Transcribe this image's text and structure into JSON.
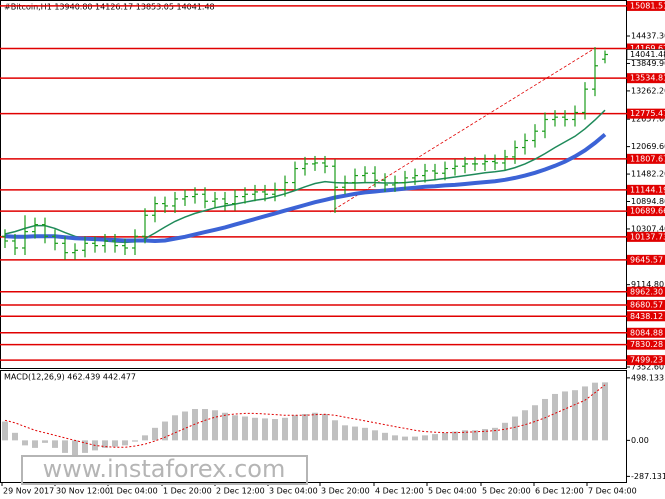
{
  "header": "#Bitcoin,H1 13940.80 14126.17 13853.05 14041.48",
  "watermark": "www.instaforex.com",
  "chart_data": [
    {
      "type": "ohlc",
      "color": "#1a9c1a",
      "xlim": [
        -0.5,
        62.2
      ],
      "ylim": [
        7331,
        15208
      ],
      "xticks": [
        {
          "value": -0.3,
          "label": "29 Nov 2017"
        },
        {
          "value": 5,
          "label": "30 Nov 12:00"
        },
        {
          "value": 10.3,
          "label": "1 Dec 04:00"
        },
        {
          "value": 15.7,
          "label": "1 Dec 20:00"
        },
        {
          "value": 21,
          "label": "2 Dec 12:00"
        },
        {
          "value": 26.3,
          "label": "3 Dec 04:00"
        },
        {
          "value": 31.5,
          "label": "3 Dec 20:00"
        },
        {
          "value": 36.9,
          "label": "4 Dec 12:00"
        },
        {
          "value": 42.2,
          "label": "5 Dec 04:00"
        },
        {
          "value": 47.6,
          "label": "5 Dec 20:00"
        },
        {
          "value": 52.9,
          "label": "6 Dec 12:00"
        },
        {
          "value": 58.2,
          "label": "7 Dec 04:00"
        }
      ],
      "yticks": [
        {
          "value": 14437.3,
          "label": "14437.30"
        },
        {
          "value": 13849.9,
          "label": "13849.90"
        },
        {
          "value": 13262.2,
          "label": "13262.20"
        },
        {
          "value": 12657.6,
          "label": "12657.60"
        },
        {
          "value": 12069.6,
          "label": "12069.60"
        },
        {
          "value": 11482.2,
          "label": "11482.20"
        },
        {
          "value": 10894.8,
          "label": "10894.80"
        },
        {
          "value": 10307.4,
          "label": "10307.40"
        },
        {
          "value": 9114.8,
          "label": "9114.80"
        },
        {
          "value": 7352.6,
          "label": "7352.60"
        }
      ],
      "levels": [
        15081.51,
        14169.62,
        13534.81,
        12775.47,
        11807.67,
        11144.19,
        10689.66,
        10137.73,
        9645.57,
        {
          "value": 8962.3,
          "label": "8962.30"
        },
        8680.57,
        8438.12,
        8084.88,
        7830.28,
        7499.23
      ],
      "level_color": "#e00000",
      "last_price": 14041.48,
      "open": [
        10150,
        10050,
        9900,
        10250,
        10400,
        10150,
        10000,
        9800,
        9850,
        10000,
        9950,
        10050,
        9950,
        9900,
        10150,
        10600,
        10850,
        10800,
        10950,
        11000,
        11050,
        10900,
        10950,
        10850,
        11000,
        11050,
        11100,
        11050,
        11150,
        11300,
        11600,
        11700,
        11720,
        11650,
        11200,
        11300,
        11450,
        11500,
        11350,
        11250,
        11300,
        11400,
        11450,
        11550,
        11500,
        11600,
        11650,
        11700,
        11700,
        11750,
        11720,
        11850,
        12050,
        12200,
        12400,
        12650,
        12700,
        12650,
        12800,
        13300,
        13940.8
      ],
      "high": [
        10300,
        10200,
        10600,
        10550,
        10550,
        10300,
        10150,
        10000,
        10150,
        10150,
        10200,
        10200,
        10100,
        10300,
        10750,
        11000,
        11000,
        11100,
        11150,
        11200,
        11200,
        11100,
        11100,
        11150,
        11200,
        11250,
        11250,
        11300,
        11450,
        11750,
        11850,
        11870,
        11870,
        11800,
        11450,
        11600,
        11650,
        11650,
        11500,
        11450,
        11550,
        11600,
        11700,
        11700,
        11750,
        11800,
        11850,
        11850,
        11900,
        11900,
        12000,
        12200,
        12350,
        12550,
        12800,
        12850,
        12850,
        12950,
        13450,
        14200,
        14126.17
      ],
      "low": [
        9900,
        9750,
        9750,
        10100,
        10000,
        9850,
        9650,
        9650,
        9700,
        9800,
        9800,
        9800,
        9750,
        9750,
        10000,
        10450,
        10650,
        10650,
        10800,
        10850,
        10750,
        10750,
        10700,
        10700,
        10850,
        10900,
        10900,
        10900,
        11000,
        11150,
        11450,
        11550,
        11500,
        10650,
        11050,
        11150,
        11300,
        11200,
        11100,
        11100,
        11150,
        11250,
        11300,
        11350,
        11350,
        11450,
        11500,
        11550,
        11550,
        11570,
        11570,
        11700,
        11900,
        12050,
        12250,
        12500,
        12500,
        12500,
        12650,
        13150,
        13853.05
      ],
      "close": [
        10050,
        9900,
        10250,
        10400,
        10150,
        10000,
        9800,
        9850,
        10000,
        9950,
        10050,
        9950,
        9900,
        10150,
        10600,
        10850,
        10800,
        10950,
        11000,
        11050,
        10900,
        10950,
        10850,
        11000,
        11050,
        11100,
        11050,
        11150,
        11300,
        11600,
        11700,
        11720,
        11650,
        11200,
        11300,
        11450,
        11500,
        11350,
        11250,
        11300,
        11400,
        11450,
        11550,
        11500,
        11600,
        11650,
        11700,
        11700,
        11750,
        11720,
        11850,
        12050,
        12200,
        12400,
        12650,
        12700,
        12650,
        12800,
        13300,
        13800,
        14041.48
      ],
      "moving_averages": [
        {
          "color": "#1f8a5a",
          "width": 1.5,
          "values": [
            10200,
            10250,
            10320,
            10380,
            10380,
            10320,
            10230,
            10150,
            10100,
            10080,
            10050,
            10030,
            10020,
            10030,
            10100,
            10220,
            10350,
            10470,
            10560,
            10640,
            10700,
            10760,
            10800,
            10840,
            10880,
            10920,
            10950,
            11000,
            11060,
            11130,
            11210,
            11280,
            11320,
            11300,
            11290,
            11290,
            11300,
            11300,
            11290,
            11290,
            11300,
            11320,
            11340,
            11360,
            11390,
            11420,
            11450,
            11480,
            11510,
            11530,
            11560,
            11620,
            11700,
            11800,
            11920,
            12050,
            12170,
            12290,
            12450,
            12640,
            12850
          ]
        },
        {
          "color": "#3c63d6",
          "width": 4,
          "values": [
            10150,
            10140,
            10140,
            10150,
            10150,
            10150,
            10130,
            10110,
            10100,
            10090,
            10080,
            10070,
            10060,
            10060,
            10060,
            10050,
            10060,
            10100,
            10140,
            10190,
            10240,
            10290,
            10340,
            10400,
            10460,
            10520,
            10580,
            10640,
            10700,
            10760,
            10820,
            10880,
            10930,
            10980,
            11020,
            11060,
            11090,
            11110,
            11130,
            11150,
            11170,
            11190,
            11210,
            11220,
            11240,
            11250,
            11270,
            11290,
            11310,
            11330,
            11360,
            11400,
            11450,
            11510,
            11580,
            11660,
            11750,
            11860,
            11990,
            12150,
            12330
          ]
        }
      ]
    },
    {
      "type": "macd",
      "title": "MACD(12,26,9) 462.439 442.477",
      "color": "#c0c0c0",
      "signal_color": "#e00000",
      "ylim": [
        -332,
        553
      ],
      "yticks": [
        498.133,
        {
          "value": 0,
          "label": "0.00"
        },
        -287.131
      ],
      "values": [
        150,
        60,
        -40,
        -60,
        -20,
        -60,
        -100,
        -120,
        -100,
        -80,
        -60,
        -50,
        -40,
        -10,
        40,
        100,
        150,
        200,
        230,
        250,
        250,
        240,
        220,
        200,
        190,
        180,
        175,
        170,
        180,
        200,
        210,
        220,
        210,
        160,
        120,
        110,
        100,
        80,
        60,
        40,
        30,
        30,
        40,
        50,
        60,
        70,
        80,
        80,
        90,
        100,
        140,
        190,
        240,
        280,
        330,
        370,
        390,
        400,
        430,
        460,
        462.439
      ],
      "signal": [
        160,
        140,
        110,
        80,
        60,
        40,
        20,
        0,
        -20,
        -40,
        -50,
        -55,
        -55,
        -45,
        -30,
        -5,
        25,
        60,
        95,
        130,
        160,
        185,
        200,
        210,
        215,
        215,
        210,
        205,
        200,
        200,
        200,
        205,
        208,
        200,
        185,
        170,
        155,
        140,
        125,
        110,
        95,
        80,
        70,
        65,
        62,
        62,
        64,
        68,
        72,
        78,
        88,
        105,
        125,
        150,
        180,
        215,
        250,
        285,
        320,
        380,
        442.477
      ]
    }
  ]
}
